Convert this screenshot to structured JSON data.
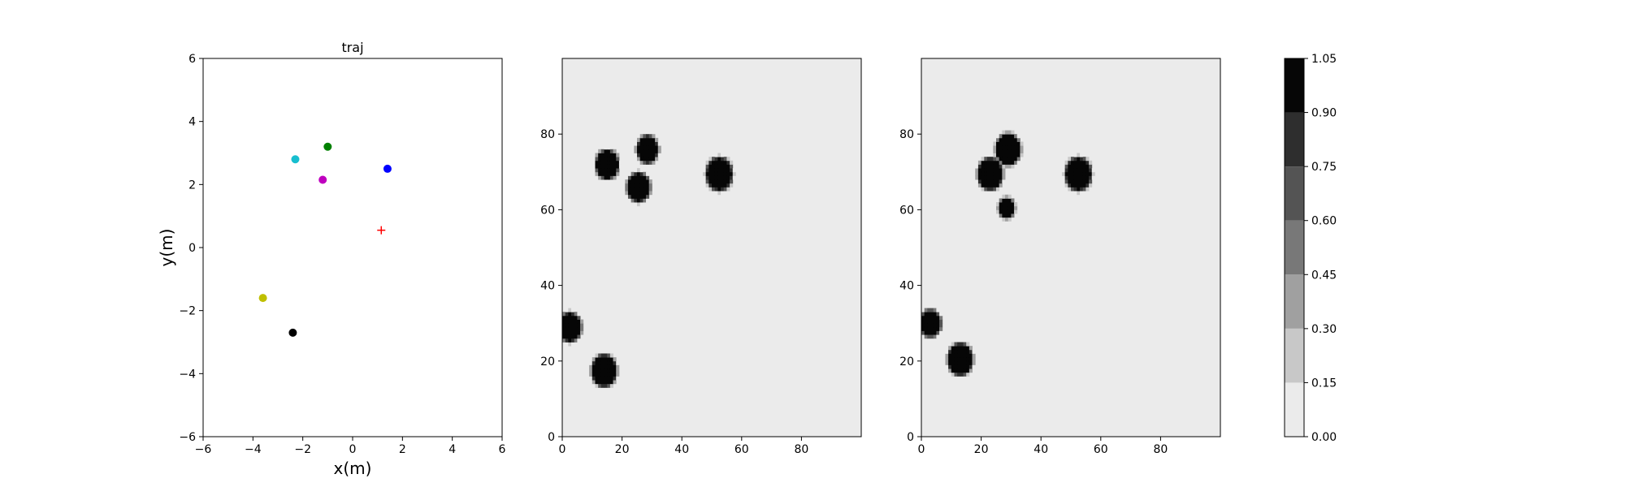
{
  "chart_data": [
    {
      "type": "scatter",
      "title": "traj",
      "xlabel": "x(m)",
      "ylabel": "y(m)",
      "xlim": [
        -6,
        6
      ],
      "ylim": [
        -6,
        6
      ],
      "xticks": [
        -6,
        -4,
        -2,
        0,
        2,
        4,
        6
      ],
      "yticks": [
        -6,
        -4,
        -2,
        0,
        2,
        4,
        6
      ],
      "grid": false,
      "points": [
        {
          "x": -2.3,
          "y": 2.8,
          "color": "#17becf",
          "marker": "circle"
        },
        {
          "x": -1.0,
          "y": 3.2,
          "color": "#008000",
          "marker": "circle"
        },
        {
          "x": 1.4,
          "y": 2.5,
          "color": "#0000ff",
          "marker": "circle"
        },
        {
          "x": -1.2,
          "y": 2.15,
          "color": "#bf00bf",
          "marker": "circle"
        },
        {
          "x": -3.6,
          "y": -1.6,
          "color": "#bfbf00",
          "marker": "circle"
        },
        {
          "x": -2.4,
          "y": -2.7,
          "color": "#000000",
          "marker": "circle"
        },
        {
          "x": 1.15,
          "y": 0.55,
          "color": "#ff0000",
          "marker": "plus"
        }
      ]
    },
    {
      "type": "heatmap",
      "xlim": [
        0,
        100
      ],
      "ylim": [
        0,
        100
      ],
      "xticks": [
        0,
        20,
        40,
        60,
        80
      ],
      "yticks": [
        0,
        20,
        40,
        60,
        80
      ],
      "background_value": 0.0,
      "blobs": [
        {
          "x": 15,
          "y": 72,
          "r": 3.5,
          "value": 1.0
        },
        {
          "x": 28.5,
          "y": 76,
          "r": 3.2,
          "value": 1.0
        },
        {
          "x": 25.5,
          "y": 66,
          "r": 3.5,
          "value": 1.0
        },
        {
          "x": 52.5,
          "y": 69.5,
          "r": 4.0,
          "value": 1.0
        },
        {
          "x": 2.5,
          "y": 29,
          "r": 3.5,
          "value": 1.0
        },
        {
          "x": 14,
          "y": 17.5,
          "r": 3.8,
          "value": 1.0
        }
      ]
    },
    {
      "type": "heatmap",
      "xlim": [
        0,
        100
      ],
      "ylim": [
        0,
        100
      ],
      "xticks": [
        0,
        20,
        40,
        60,
        80
      ],
      "yticks": [
        0,
        20,
        40,
        60,
        80
      ],
      "background_value": 0.0,
      "blobs": [
        {
          "x": 23,
          "y": 69.5,
          "r": 3.8,
          "value": 1.0
        },
        {
          "x": 29,
          "y": 76,
          "r": 3.8,
          "value": 1.0
        },
        {
          "x": 28.5,
          "y": 60.5,
          "r": 2.2,
          "value": 0.95
        },
        {
          "x": 52.5,
          "y": 69.5,
          "r": 4.0,
          "value": 1.0
        },
        {
          "x": 3,
          "y": 30,
          "r": 3.2,
          "value": 1.0
        },
        {
          "x": 13,
          "y": 20.5,
          "r": 3.8,
          "value": 1.0
        }
      ]
    }
  ],
  "colorbar": {
    "levels": [
      0.0,
      0.15,
      0.3,
      0.45,
      0.6,
      0.75,
      0.9,
      1.05
    ],
    "tick_labels": [
      "0.00",
      "0.15",
      "0.30",
      "0.45",
      "0.60",
      "0.75",
      "0.90",
      "1.05"
    ],
    "colors": [
      "#ebebeb",
      "#c8c8c8",
      "#a0a0a0",
      "#787878",
      "#545454",
      "#2e2e2e",
      "#060606"
    ]
  }
}
